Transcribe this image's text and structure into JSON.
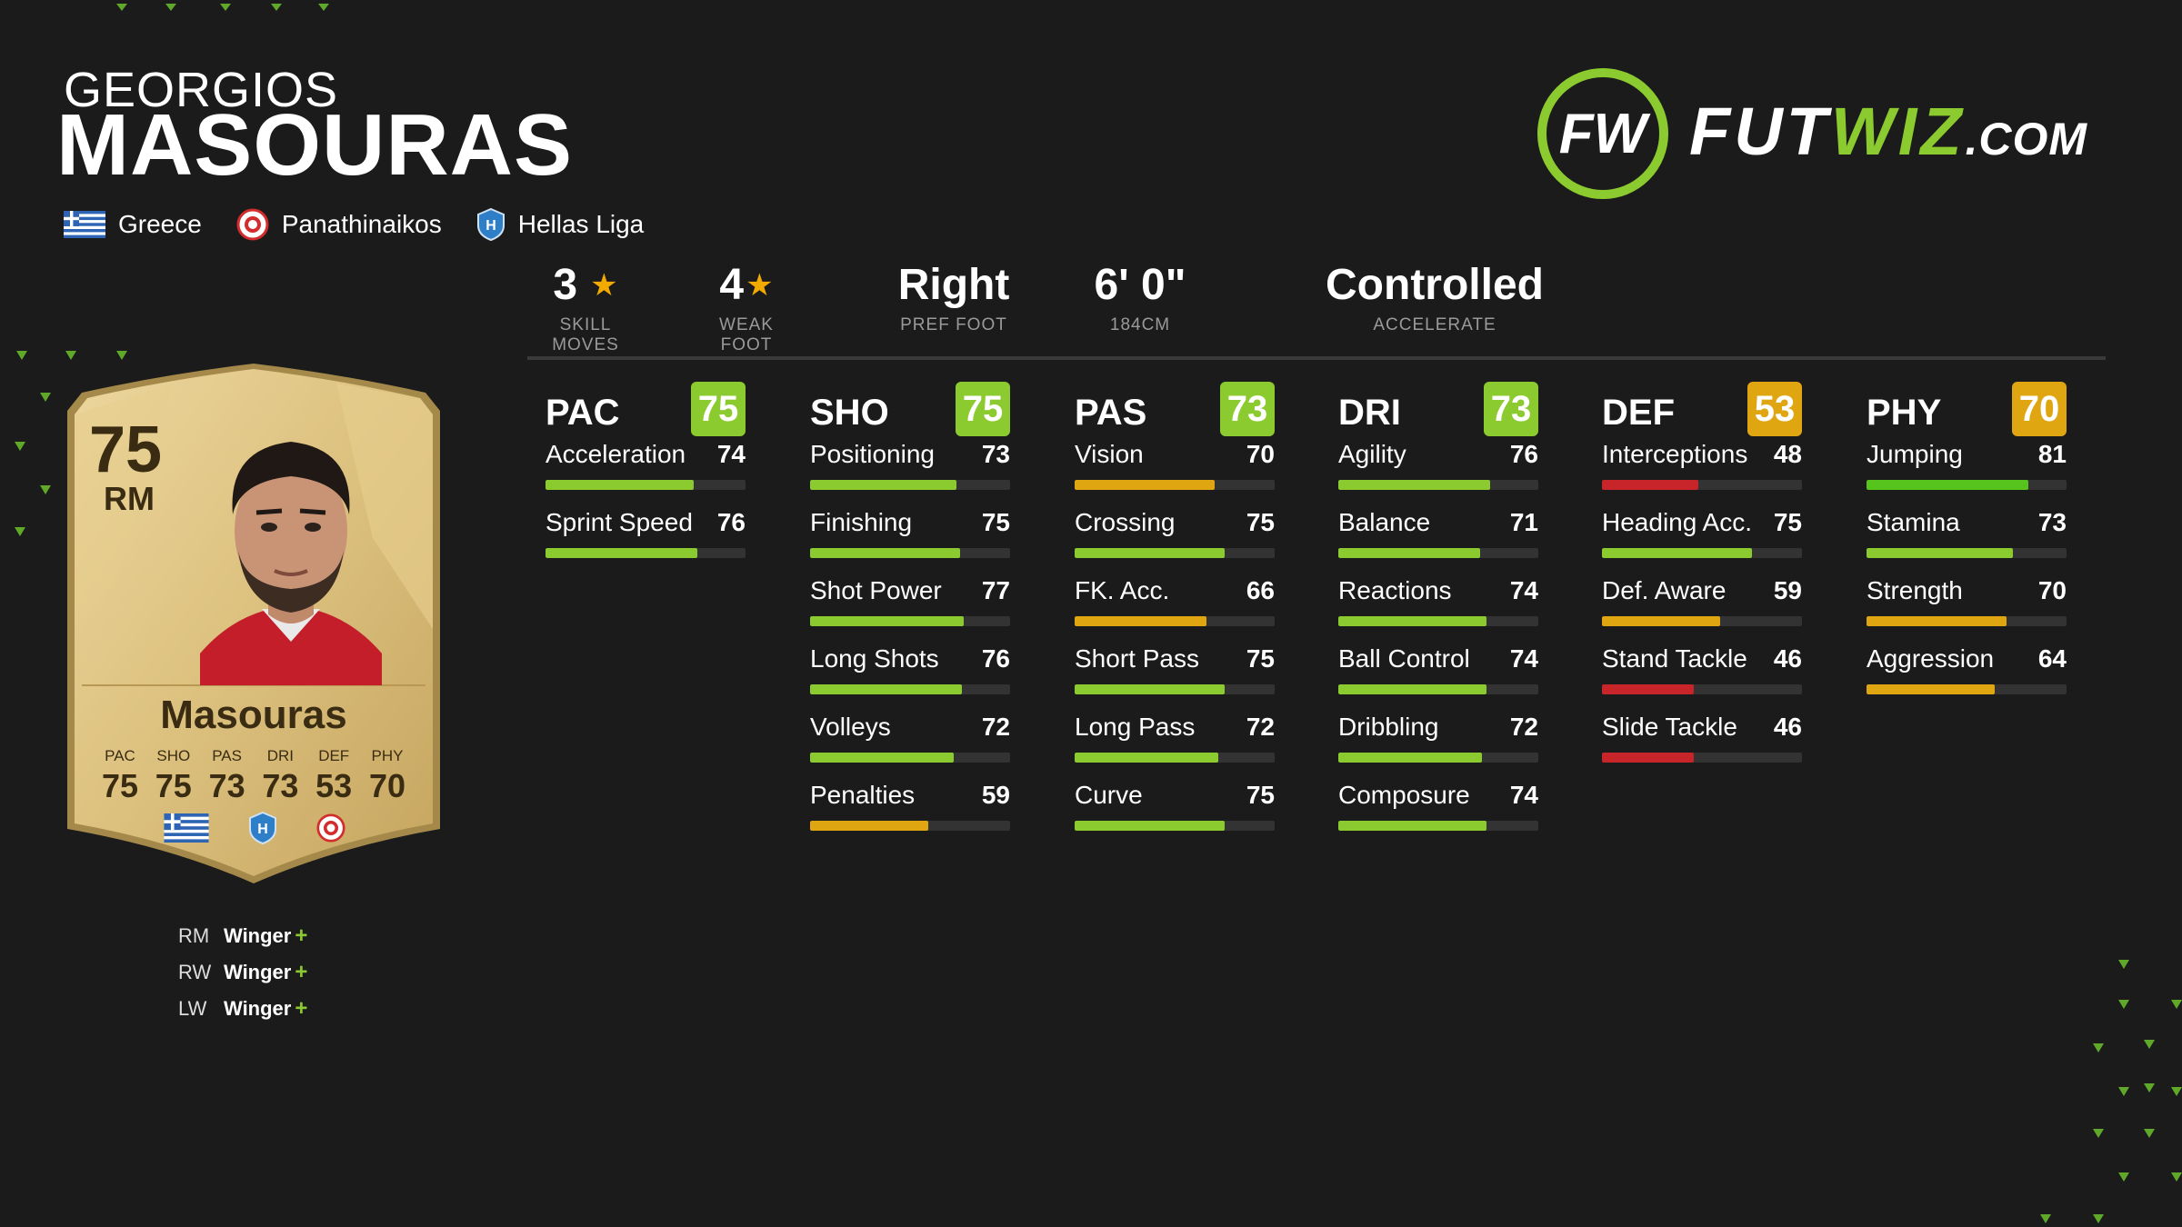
{
  "player": {
    "first_name": "GEORGIOS",
    "last_name": "MASOURAS",
    "nation": "Greece",
    "club": "Panathinaikos",
    "league": "Hellas Liga"
  },
  "logo": {
    "part1": "FUT",
    "part2": "WIZ",
    "part3": ".COM"
  },
  "info": {
    "skill_moves": {
      "value": "3",
      "label": "SKILL MOVES"
    },
    "weak_foot": {
      "value": "4",
      "label": "WEAK FOOT"
    },
    "pref_foot": {
      "value": "Right",
      "label": "PREF FOOT"
    },
    "height": {
      "value": "6' 0\"",
      "label": "184CM"
    },
    "accelerate": {
      "value": "Controlled",
      "label": "ACCELERATE"
    }
  },
  "colors": {
    "green": "#8ccb2f",
    "orange": "#e0a612",
    "red": "#c8252b",
    "bright_green": "#56c41d"
  },
  "categories": [
    {
      "name": "PAC",
      "rating": "75",
      "color": "#8ccb2f",
      "attrs": [
        {
          "name": "Acceleration",
          "value": "74",
          "color": "#8ccb2f"
        },
        {
          "name": "Sprint Speed",
          "value": "76",
          "color": "#8ccb2f"
        }
      ]
    },
    {
      "name": "SHO",
      "rating": "75",
      "color": "#8ccb2f",
      "attrs": [
        {
          "name": "Positioning",
          "value": "73",
          "color": "#8ccb2f"
        },
        {
          "name": "Finishing",
          "value": "75",
          "color": "#8ccb2f"
        },
        {
          "name": "Shot Power",
          "value": "77",
          "color": "#8ccb2f"
        },
        {
          "name": "Long Shots",
          "value": "76",
          "color": "#8ccb2f"
        },
        {
          "name": "Volleys",
          "value": "72",
          "color": "#8ccb2f"
        },
        {
          "name": "Penalties",
          "value": "59",
          "color": "#e0a612"
        }
      ]
    },
    {
      "name": "PAS",
      "rating": "73",
      "color": "#8ccb2f",
      "attrs": [
        {
          "name": "Vision",
          "value": "70",
          "color": "#e0a612"
        },
        {
          "name": "Crossing",
          "value": "75",
          "color": "#8ccb2f"
        },
        {
          "name": "FK. Acc.",
          "value": "66",
          "color": "#e0a612"
        },
        {
          "name": "Short Pass",
          "value": "75",
          "color": "#8ccb2f"
        },
        {
          "name": "Long Pass",
          "value": "72",
          "color": "#8ccb2f"
        },
        {
          "name": "Curve",
          "value": "75",
          "color": "#8ccb2f"
        }
      ]
    },
    {
      "name": "DRI",
      "rating": "73",
      "color": "#8ccb2f",
      "attrs": [
        {
          "name": "Agility",
          "value": "76",
          "color": "#8ccb2f"
        },
        {
          "name": "Balance",
          "value": "71",
          "color": "#8ccb2f"
        },
        {
          "name": "Reactions",
          "value": "74",
          "color": "#8ccb2f"
        },
        {
          "name": "Ball Control",
          "value": "74",
          "color": "#8ccb2f"
        },
        {
          "name": "Dribbling",
          "value": "72",
          "color": "#8ccb2f"
        },
        {
          "name": "Composure",
          "value": "74",
          "color": "#8ccb2f"
        }
      ]
    },
    {
      "name": "DEF",
      "rating": "53",
      "color": "#e0a612",
      "attrs": [
        {
          "name": "Interceptions",
          "value": "48",
          "color": "#c8252b"
        },
        {
          "name": "Heading Acc.",
          "value": "75",
          "color": "#8ccb2f"
        },
        {
          "name": "Def. Aware",
          "value": "59",
          "color": "#e0a612"
        },
        {
          "name": "Stand Tackle",
          "value": "46",
          "color": "#c8252b"
        },
        {
          "name": "Slide Tackle",
          "value": "46",
          "color": "#c8252b"
        }
      ]
    },
    {
      "name": "PHY",
      "rating": "70",
      "color": "#e0a612",
      "attrs": [
        {
          "name": "Jumping",
          "value": "81",
          "color": "#56c41d"
        },
        {
          "name": "Stamina",
          "value": "73",
          "color": "#8ccb2f"
        },
        {
          "name": "Strength",
          "value": "70",
          "color": "#e0a612"
        },
        {
          "name": "Aggression",
          "value": "64",
          "color": "#e0a612"
        }
      ]
    }
  ],
  "card": {
    "rating": "75",
    "position": "RM",
    "name": "Masouras",
    "stats": [
      {
        "label": "PAC",
        "value": "75"
      },
      {
        "label": "SHO",
        "value": "75"
      },
      {
        "label": "PAS",
        "value": "73"
      },
      {
        "label": "DRI",
        "value": "73"
      },
      {
        "label": "DEF",
        "value": "53"
      },
      {
        "label": "PHY",
        "value": "70"
      }
    ]
  },
  "roles": [
    {
      "pos": "RM",
      "name": "Winger",
      "plus": "+"
    },
    {
      "pos": "RW",
      "name": "Winger",
      "plus": "+"
    },
    {
      "pos": "LW",
      "name": "Winger",
      "plus": "+"
    }
  ]
}
